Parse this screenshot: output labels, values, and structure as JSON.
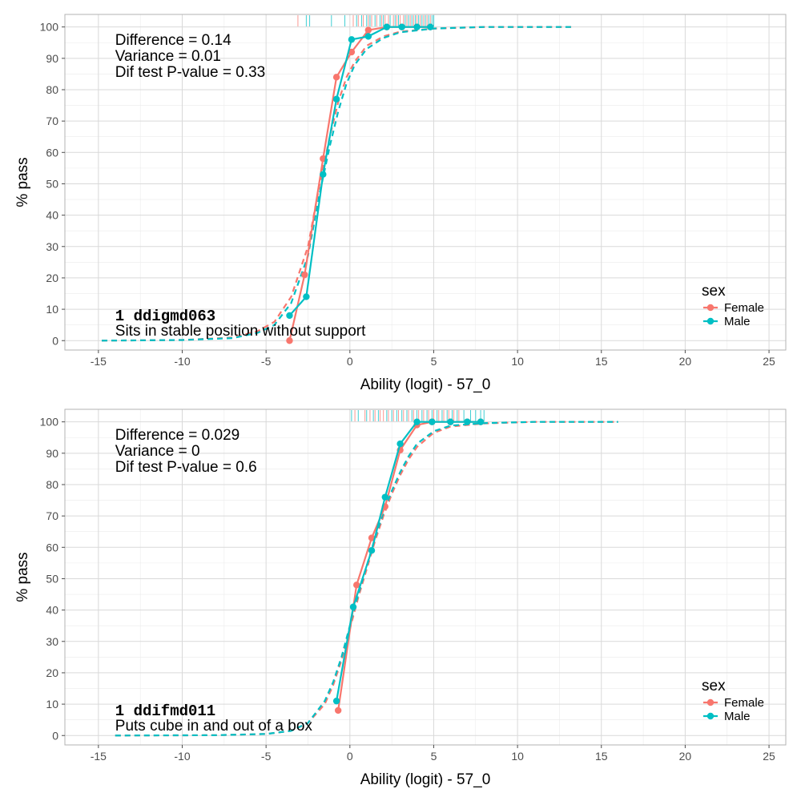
{
  "chart_data": [
    {
      "type": "line",
      "xlabel": "Ability (logit) - 57_0",
      "ylabel": "% pass",
      "xlim": [
        -17,
        26
      ],
      "ylim": [
        -3,
        104
      ],
      "x_ticks": [
        -15,
        -10,
        -5,
        0,
        5,
        10,
        15,
        20,
        25
      ],
      "x_tick_labels": [
        "-15",
        "-10",
        "-5",
        "0",
        "5",
        "10",
        "15",
        "20",
        "25"
      ],
      "y_ticks": [
        0,
        10,
        20,
        30,
        40,
        50,
        60,
        70,
        80,
        90,
        100
      ],
      "y_tick_labels": [
        "0",
        "10",
        "20",
        "30",
        "40",
        "50",
        "60",
        "70",
        "80",
        "90",
        "100"
      ],
      "grid": true,
      "stats": [
        "Difference = 0.14",
        "Variance = 0.01",
        "Dif test P-value = 0.33"
      ],
      "item_code": "1  ddigmd063",
      "item_label": "Sits in stable position without support",
      "legend": {
        "title": "sex",
        "position": "right",
        "entries": [
          "Female",
          "Male"
        ]
      },
      "series": [
        {
          "name": "Female",
          "color": "#F8766D",
          "observed": {
            "x": [
              -3.6,
              -2.7,
              -1.6,
              -0.8,
              0.1,
              1.1,
              2.2,
              3.1,
              4.0,
              4.8
            ],
            "y": [
              0,
              21,
              58,
              84,
              92,
              99,
              100,
              100,
              100,
              100
            ]
          },
          "expected": {
            "x": [
              -14.8,
              -10,
              -7,
              -5.5,
              -4.5,
              -3.5,
              -2.5,
              -1.8,
              -1.2,
              -0.7,
              -0.2,
              0.3,
              1,
              2,
              3,
              5,
              8,
              13.2
            ],
            "y": [
              0,
              0.2,
              1,
              3,
              6,
              14,
              30,
              50,
              65,
              76,
              84,
              89,
              94,
              97,
              98.5,
              99.5,
              100,
              100
            ]
          },
          "rug": [
            -3.1,
            0.2,
            0.5,
            0.8,
            1.1,
            1.3,
            1.6,
            1.9,
            2.1,
            2.3,
            2.6,
            2.8,
            3.0,
            3.2,
            3.4,
            3.6,
            3.8,
            4.0,
            4.2,
            4.4,
            4.6,
            4.8
          ]
        },
        {
          "name": "Male",
          "color": "#00BFC4",
          "observed": {
            "x": [
              -3.6,
              -2.6,
              -1.6,
              -0.8,
              0.1,
              1.1,
              2.2,
              3.1,
              4.0,
              4.8
            ],
            "y": [
              8,
              14,
              53,
              77,
              96,
              97,
              100,
              100,
              100,
              100
            ]
          },
          "expected": {
            "x": [
              -14.8,
              -10,
              -7,
              -5.5,
              -4.5,
              -3.5,
              -2.5,
              -1.8,
              -1.2,
              -0.7,
              -0.2,
              0.3,
              1,
              2,
              3,
              5,
              8,
              13.2
            ],
            "y": [
              0,
              0.2,
              0.8,
              2.5,
              5,
              12,
              27,
              47,
              62,
              73,
              82,
              88,
              93,
              96.5,
              98.3,
              99.5,
              100,
              100
            ]
          },
          "rug": [
            -2.6,
            -2.4,
            -1.1,
            -0.3,
            0.4,
            0.7,
            1.0,
            1.2,
            1.5,
            1.8,
            2.0,
            2.4,
            2.7,
            2.9,
            3.3,
            3.5,
            3.7,
            3.9,
            4.1,
            4.3,
            4.5,
            4.7,
            4.9,
            5.0
          ]
        }
      ]
    },
    {
      "type": "line",
      "xlabel": "Ability (logit) - 57_0",
      "ylabel": "% pass",
      "xlim": [
        -17,
        26
      ],
      "ylim": [
        -3,
        104
      ],
      "x_ticks": [
        -15,
        -10,
        -5,
        0,
        5,
        10,
        15,
        20,
        25
      ],
      "x_tick_labels": [
        "-15",
        "-10",
        "-5",
        "0",
        "5",
        "10",
        "15",
        "20",
        "25"
      ],
      "y_ticks": [
        0,
        10,
        20,
        30,
        40,
        50,
        60,
        70,
        80,
        90,
        100
      ],
      "y_tick_labels": [
        "0",
        "10",
        "20",
        "30",
        "40",
        "50",
        "60",
        "70",
        "80",
        "90",
        "100"
      ],
      "grid": true,
      "stats": [
        "Difference = 0.029",
        "Variance = 0",
        "Dif test P-value = 0.6"
      ],
      "item_code": "1  ddifmd011",
      "item_label": "Puts cube in and out of a box",
      "legend": {
        "title": "sex",
        "position": "right",
        "entries": [
          "Female",
          "Male"
        ]
      },
      "series": [
        {
          "name": "Female",
          "color": "#F8766D",
          "observed": {
            "x": [
              -0.7,
              0.4,
              1.3,
              2.1,
              3.0,
              4.0,
              4.9,
              6.0,
              7.0,
              7.8
            ],
            "y": [
              8,
              48,
              63,
              73,
              91,
              99,
              100,
              100,
              100,
              100
            ]
          },
          "expected": {
            "x": [
              -14,
              -8,
              -5,
              -3.5,
              -2.5,
              -1.5,
              -1,
              -0.5,
              0,
              0.5,
              1,
              1.5,
              2,
              2.5,
              3,
              3.5,
              4,
              5,
              6,
              8,
              11,
              16
            ],
            "y": [
              0,
              0.1,
              0.5,
              1.5,
              4,
              10,
              16,
              24,
              34,
              44,
              53,
              62,
              70,
              77,
              83,
              88,
              92,
              96.5,
              98.5,
              99.5,
              100,
              100
            ]
          },
          "rug": [
            0.3,
            0.9,
            1.2,
            1.5,
            1.8,
            2.0,
            2.3,
            2.6,
            2.9,
            3.2,
            3.5,
            3.8,
            4.1,
            4.4,
            4.7,
            5.0,
            5.3,
            5.6,
            5.9,
            6.2,
            6.5
          ]
        },
        {
          "name": "Male",
          "color": "#00BFC4",
          "observed": {
            "x": [
              -0.8,
              0.2,
              1.3,
              2.1,
              3.0,
              4.0,
              4.9,
              6.0,
              7.0,
              7.8
            ],
            "y": [
              11,
              41,
              59,
              76,
              93,
              100,
              100,
              100,
              100,
              100
            ]
          },
          "expected": {
            "x": [
              -14,
              -8,
              -5,
              -3.5,
              -2.5,
              -1.5,
              -1,
              -0.5,
              0,
              0.5,
              1,
              1.5,
              2,
              2.5,
              3,
              3.5,
              4,
              5,
              6,
              8,
              11,
              16
            ],
            "y": [
              0,
              0.1,
              0.5,
              1.5,
              4,
              11,
              17,
              25,
              35,
              45,
              54,
              63,
              71,
              78,
              84,
              89,
              93,
              97,
              98.8,
              99.6,
              100,
              100
            ]
          },
          "rug": [
            0.1,
            0.5,
            1.0,
            1.4,
            1.7,
            2.2,
            2.5,
            2.8,
            3.1,
            3.4,
            3.7,
            4.0,
            4.3,
            4.6,
            4.9,
            5.2,
            5.5,
            5.8,
            6.1,
            6.4,
            6.8,
            7.2,
            7.5,
            7.8,
            8.0
          ]
        }
      ]
    }
  ]
}
